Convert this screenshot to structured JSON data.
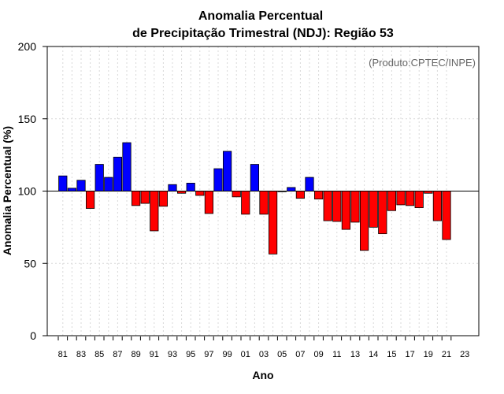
{
  "chart_data": {
    "type": "bar",
    "title": "Anomalia Percentual",
    "subtitle": "de Precipitação Trimestral (NDJ): Região 53",
    "xlabel": "Ano",
    "ylabel": "Anomalia Percentual (%)",
    "credit": "(Produto:CPTEC/INPE)",
    "ylim": [
      0,
      200
    ],
    "yticks": [
      0,
      50,
      100,
      150,
      200
    ],
    "baseline": 100,
    "xticks": [
      "81",
      "83",
      "85",
      "87",
      "89",
      "91",
      "93",
      "95",
      "97",
      "99",
      "01",
      "03",
      "05",
      "07",
      "09",
      "11",
      "13",
      "14",
      "15",
      "17",
      "19",
      "21",
      "23"
    ],
    "categories": [
      "1981",
      "1982",
      "1983",
      "1984",
      "1985",
      "1986",
      "1987",
      "1988",
      "1989",
      "1990",
      "1991",
      "1992",
      "1993",
      "1994",
      "1995",
      "1996",
      "1997",
      "1998",
      "1999",
      "2000",
      "2001",
      "2002",
      "2003",
      "2004",
      "2005",
      "2006",
      "2007",
      "2008",
      "2009",
      "2010",
      "2011",
      "2012",
      "2013",
      "2014",
      "2015",
      "2016",
      "2017",
      "2018",
      "2019",
      "2020",
      "2021",
      "2022",
      "2023"
    ],
    "values": [
      110.5,
      102,
      107.5,
      88,
      118.5,
      109.5,
      123.5,
      133.5,
      90,
      91.5,
      72.5,
      89.5,
      104.5,
      98.5,
      105.5,
      97,
      84.5,
      115.5,
      127.5,
      96,
      84,
      118.5,
      84,
      56.5,
      100,
      102.5,
      95,
      109.5,
      94.5,
      79.5,
      79,
      73.5,
      78.5,
      59,
      75,
      70.5,
      86.5,
      90.5,
      90,
      88.5,
      98.5,
      79.5,
      66.5
    ],
    "colors": {
      "above": "#0000ff",
      "below": "#ff0000",
      "grid": "#d9d9d9"
    }
  }
}
